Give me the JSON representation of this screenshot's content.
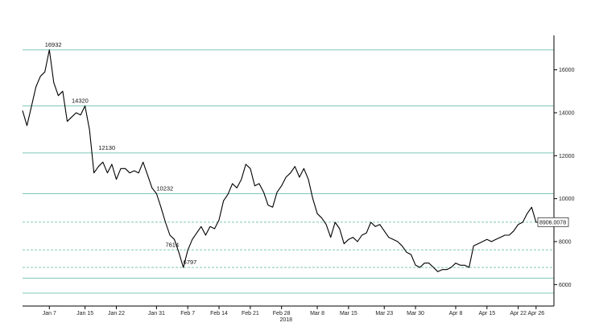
{
  "chart_data": {
    "type": "line",
    "title": "",
    "xlabel": "",
    "ylabel": "",
    "year_label": "2018",
    "ylim": [
      5000,
      17600
    ],
    "xlim": [
      "2018-01-01",
      "2018-04-30"
    ],
    "y_ticks": [
      6000,
      8000,
      10000,
      12000,
      14000,
      16000
    ],
    "x_ticks": [
      {
        "date": "2018-01-07",
        "label": "Jan 7"
      },
      {
        "date": "2018-01-15",
        "label": "Jan 15"
      },
      {
        "date": "2018-01-22",
        "label": "Jan 22"
      },
      {
        "date": "2018-01-31",
        "label": "Jan 31"
      },
      {
        "date": "2018-02-07",
        "label": "Feb 7"
      },
      {
        "date": "2018-02-14",
        "label": "Feb 14"
      },
      {
        "date": "2018-02-21",
        "label": "Feb 21"
      },
      {
        "date": "2018-02-28",
        "label": "Feb 28"
      },
      {
        "date": "2018-03-08",
        "label": "Mar 8"
      },
      {
        "date": "2018-03-15",
        "label": "Mar 15"
      },
      {
        "date": "2018-03-23",
        "label": "Mar 23"
      },
      {
        "date": "2018-03-30",
        "label": "Mar 30"
      },
      {
        "date": "2018-04-08",
        "label": "Apr 8"
      },
      {
        "date": "2018-04-15",
        "label": "Apr 15"
      },
      {
        "date": "2018-04-22",
        "label": "Apr 22"
      },
      {
        "date": "2018-04-26",
        "label": "Apr 26"
      }
    ],
    "horizontal_levels": [
      {
        "value": 16932,
        "style": "solid",
        "label": "16932",
        "label_date": "2018-01-06"
      },
      {
        "value": 14320,
        "style": "solid",
        "label": "14320",
        "label_date": "2018-01-12"
      },
      {
        "value": 12130,
        "style": "solid",
        "label": "12130",
        "label_date": "2018-01-18"
      },
      {
        "value": 10232,
        "style": "solid",
        "label": "10232",
        "label_date": "2018-01-31"
      },
      {
        "value": 7614,
        "style": "dashed",
        "label": "7614",
        "label_date": "2018-02-02"
      },
      {
        "value": 6797,
        "style": "dashed",
        "label": "6797",
        "label_date": "2018-02-06"
      },
      {
        "value": 8906.0078,
        "style": "dashed",
        "label": ""
      },
      {
        "value": 6300,
        "style": "solid",
        "label": ""
      },
      {
        "value": 5600,
        "style": "solid",
        "label": ""
      }
    ],
    "last_value": {
      "value": 8906.0078,
      "label": "8906.0078"
    },
    "line_color": "#000000",
    "level_color": "#7fc8b8",
    "series": [
      {
        "x": [
          "2018-01-01",
          "2018-01-02",
          "2018-01-03",
          "2018-01-04",
          "2018-01-05",
          "2018-01-06",
          "2018-01-07",
          "2018-01-08",
          "2018-01-09",
          "2018-01-10",
          "2018-01-11",
          "2018-01-12",
          "2018-01-13",
          "2018-01-14",
          "2018-01-15",
          "2018-01-16",
          "2018-01-17",
          "2018-01-18",
          "2018-01-19",
          "2018-01-20",
          "2018-01-21",
          "2018-01-22",
          "2018-01-23",
          "2018-01-24",
          "2018-01-25",
          "2018-01-26",
          "2018-01-27",
          "2018-01-28",
          "2018-01-29",
          "2018-01-30",
          "2018-01-31",
          "2018-02-01",
          "2018-02-02",
          "2018-02-03",
          "2018-02-04",
          "2018-02-05",
          "2018-02-06",
          "2018-02-07",
          "2018-02-08",
          "2018-02-09",
          "2018-02-10",
          "2018-02-11",
          "2018-02-12",
          "2018-02-13",
          "2018-02-14",
          "2018-02-15",
          "2018-02-16",
          "2018-02-17",
          "2018-02-18",
          "2018-02-19",
          "2018-02-20",
          "2018-02-21",
          "2018-02-22",
          "2018-02-23",
          "2018-02-24",
          "2018-02-25",
          "2018-02-26",
          "2018-02-27",
          "2018-02-28",
          "2018-03-01",
          "2018-03-02",
          "2018-03-03",
          "2018-03-04",
          "2018-03-05",
          "2018-03-06",
          "2018-03-07",
          "2018-03-08",
          "2018-03-09",
          "2018-03-10",
          "2018-03-11",
          "2018-03-12",
          "2018-03-13",
          "2018-03-14",
          "2018-03-15",
          "2018-03-16",
          "2018-03-17",
          "2018-03-18",
          "2018-03-19",
          "2018-03-20",
          "2018-03-21",
          "2018-03-22",
          "2018-03-23",
          "2018-03-24",
          "2018-03-25",
          "2018-03-26",
          "2018-03-27",
          "2018-03-28",
          "2018-03-29",
          "2018-03-30",
          "2018-03-31",
          "2018-04-01",
          "2018-04-02",
          "2018-04-03",
          "2018-04-04",
          "2018-04-05",
          "2018-04-06",
          "2018-04-07",
          "2018-04-08",
          "2018-04-09",
          "2018-04-10",
          "2018-04-11",
          "2018-04-12",
          "2018-04-13",
          "2018-04-14",
          "2018-04-15",
          "2018-04-16",
          "2018-04-17",
          "2018-04-18",
          "2018-04-19",
          "2018-04-20",
          "2018-04-21",
          "2018-04-22",
          "2018-04-23",
          "2018-04-24",
          "2018-04-25",
          "2018-04-26",
          "2018-04-27"
        ],
        "values": [
          14100,
          13400,
          14300,
          15200,
          15700,
          15900,
          16932,
          15400,
          14800,
          15000,
          13600,
          13800,
          14000,
          13900,
          14320,
          13200,
          11200,
          11500,
          11700,
          11200,
          11600,
          10900,
          11400,
          11400,
          11200,
          11300,
          11200,
          11700,
          11100,
          10500,
          10232,
          9600,
          8900,
          8300,
          8100,
          7500,
          6797,
          7600,
          8100,
          8400,
          8700,
          8300,
          8700,
          8600,
          9000,
          9900,
          10200,
          10700,
          10500,
          10900,
          11600,
          11400,
          10600,
          10700,
          10300,
          9700,
          9600,
          10300,
          10600,
          11000,
          11200,
          11500,
          11000,
          11400,
          10900,
          10000,
          9300,
          9100,
          8800,
          8200,
          8900,
          8600,
          7900,
          8100,
          8200,
          8000,
          8300,
          8400,
          8900,
          8700,
          8800,
          8500,
          8200,
          8100,
          8000,
          7800,
          7500,
          7400,
          6900,
          6800,
          7000,
          7000,
          6800,
          6600,
          6700,
          6700,
          6800,
          7000,
          6900,
          6900,
          6800,
          7800,
          7900,
          8000,
          8100,
          8000,
          8100,
          8200,
          8300,
          8300,
          8500,
          8800,
          8900,
          9300,
          9600,
          8900,
          8906
        ]
      }
    ]
  }
}
